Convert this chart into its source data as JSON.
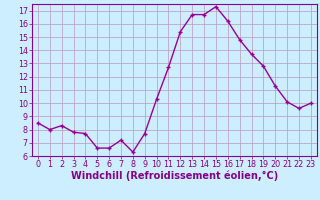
{
  "x": [
    0,
    1,
    2,
    3,
    4,
    5,
    6,
    7,
    8,
    9,
    10,
    11,
    12,
    13,
    14,
    15,
    16,
    17,
    18,
    19,
    20,
    21,
    22,
    23
  ],
  "y": [
    8.5,
    8.0,
    8.3,
    7.8,
    7.7,
    6.6,
    6.6,
    7.2,
    6.3,
    7.7,
    10.3,
    12.7,
    15.4,
    16.7,
    16.7,
    17.3,
    16.2,
    14.8,
    13.7,
    12.8,
    11.3,
    10.1,
    9.6,
    10.0
  ],
  "line_color": "#990099",
  "marker": "+",
  "bg_color": "#cceeff",
  "grid_color": "#bb99bb",
  "xlabel": "Windchill (Refroidissement éolien,°C)",
  "ylim": [
    6,
    17.5
  ],
  "xlim": [
    -0.5,
    23.5
  ],
  "yticks": [
    6,
    7,
    8,
    9,
    10,
    11,
    12,
    13,
    14,
    15,
    16,
    17
  ],
  "xticks": [
    0,
    1,
    2,
    3,
    4,
    5,
    6,
    7,
    8,
    9,
    10,
    11,
    12,
    13,
    14,
    15,
    16,
    17,
    18,
    19,
    20,
    21,
    22,
    23
  ],
  "tick_label_color": "#880088",
  "tick_label_fontsize": 5.8,
  "xlabel_fontsize": 7.0,
  "linewidth": 1.0,
  "markersize": 3.5,
  "markeredgewidth": 1.0
}
